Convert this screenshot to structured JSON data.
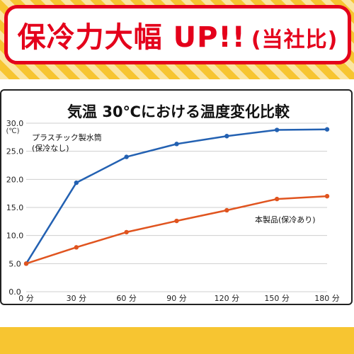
{
  "banner": {
    "headline": "保冷力大幅 UP!!",
    "headline_suffix": "(当社比)"
  },
  "colors": {
    "banner_yellow": "#f7c531",
    "headline_red": "#e4001b",
    "series_plastic": "#2361b2",
    "series_product": "#e0541f"
  },
  "chart_data": {
    "type": "line",
    "title": "気温 30℃における温度変化比較",
    "ylabel": "(℃)",
    "xlabel": "",
    "x": [
      "0 分",
      "30 分",
      "60 分",
      "90 分",
      "120 分",
      "150 分",
      "180 分"
    ],
    "yticks": [
      "0.0",
      "5.0",
      "10.0",
      "15.0",
      "20.0",
      "25.0",
      "30.0"
    ],
    "ylim": [
      0,
      30
    ],
    "grid": "horizontal",
    "series": [
      {
        "name": "プラスチック製水筒(保冷なし)",
        "label_lines": [
          "プラスチック製水筒",
          "(保冷なし)"
        ],
        "color": "#2361b2",
        "values": [
          5.0,
          19.4,
          24.0,
          26.3,
          27.7,
          28.8,
          28.9
        ]
      },
      {
        "name": "本製品(保冷あり)",
        "label_lines": [
          "本製品(保冷あり)"
        ],
        "color": "#e0541f",
        "values": [
          5.0,
          7.9,
          10.6,
          12.6,
          14.5,
          16.5,
          17.0
        ]
      }
    ]
  }
}
